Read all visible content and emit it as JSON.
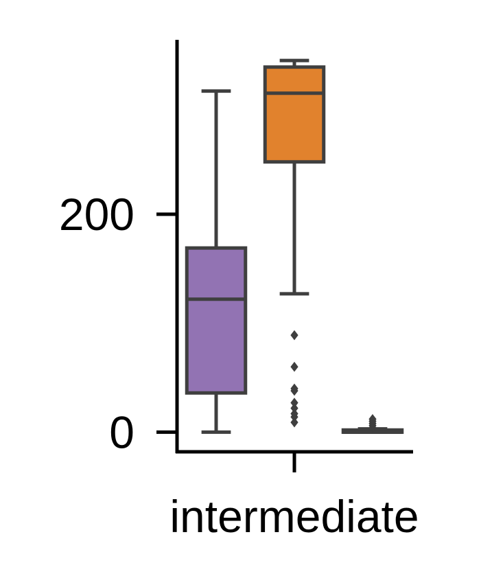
{
  "chart_data": {
    "type": "box",
    "title": "",
    "xlabel": "",
    "ylabel": "",
    "categories": [
      "intermediate"
    ],
    "x_tick_labels": [
      "intermediate"
    ],
    "y_ticks": [
      0,
      200
    ],
    "y_tick_labels": [
      "0",
      "200"
    ],
    "ylim": [
      -18,
      360
    ],
    "grid": false,
    "legend": "none",
    "edge_color": "#3f3f3f",
    "boxes": [
      {
        "fill": "#9273b3",
        "whisker_low": 0,
        "q1": 36,
        "median": 122,
        "q3": 169,
        "whisker_high": 313,
        "outliers": []
      },
      {
        "fill": "#e1822d",
        "whisker_low": 127,
        "q1": 248,
        "median": 311,
        "q3": 335,
        "whisker_high": 341,
        "outliers": [
          9,
          14,
          17,
          22,
          27,
          38,
          40,
          60,
          89
        ]
      },
      {
        "fill": "#4a4a4a",
        "whisker_low": 0,
        "q1": 0,
        "median": 0,
        "q3": 2,
        "whisker_high": 3,
        "outliers": [
          4,
          6,
          8,
          10,
          12
        ]
      }
    ]
  }
}
